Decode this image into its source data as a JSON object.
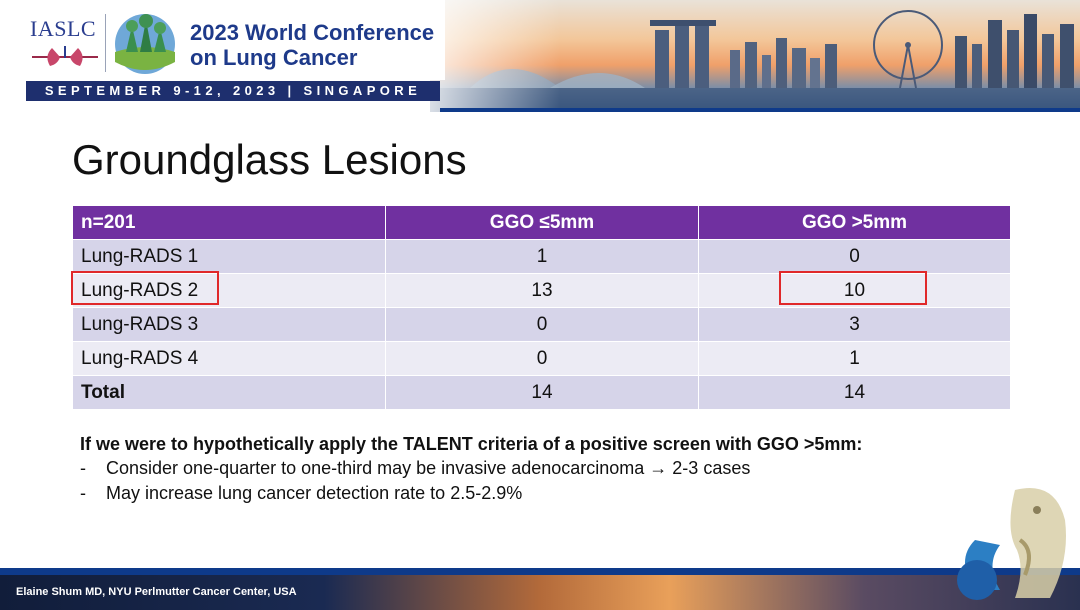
{
  "header": {
    "org": "IASLC",
    "conference_line1": "2023 World Conference",
    "conference_line2": "on Lung Cancer",
    "dates": "SEPTEMBER 9-12, 2023 | SINGAPORE"
  },
  "slide": {
    "title": "Groundglass Lesions"
  },
  "table": {
    "headers": [
      "n=201",
      "GGO ≤5mm",
      "GGO >5mm"
    ],
    "rows": [
      [
        "Lung-RADS 1",
        "1",
        "0"
      ],
      [
        "Lung-RADS 2",
        "13",
        "10"
      ],
      [
        "Lung-RADS 3",
        "0",
        "3"
      ],
      [
        "Lung-RADS 4",
        "0",
        "1"
      ],
      [
        "Total",
        "14",
        "14"
      ]
    ]
  },
  "notes": {
    "headline": "If we were to hypothetically apply the TALENT criteria of a positive screen with GGO >5mm:",
    "bullets": [
      "Consider one-quarter to one-third may be invasive adenocarcinoma → 2-3 cases",
      "May increase lung cancer detection rate to 2.5-2.9%"
    ],
    "dash": "-"
  },
  "footer": {
    "credit": "Elaine Shum MD, NYU Perlmutter Cancer Center, USA"
  },
  "colors": {
    "table_header": "#7030a0",
    "row_dark": "#d6d4e9",
    "row_light": "#ecebf4",
    "highlight": "#e0282a",
    "brand_navy": "#1e2f6e"
  },
  "icons": [
    "iaslc-lung-emblem-icon",
    "supertree-globe-icon",
    "merlion-icon"
  ]
}
